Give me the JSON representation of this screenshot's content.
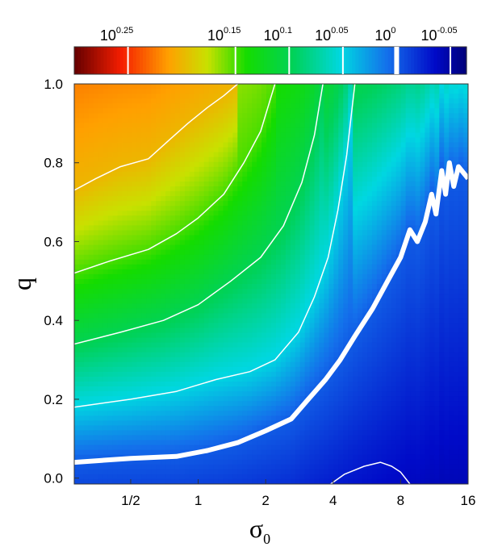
{
  "chart_data": {
    "type": "heatmap",
    "xlabel": "σ",
    "xlabel_sub": "0",
    "ylabel": "q",
    "x_scale": "log2",
    "xlim": [
      0.28,
      16
    ],
    "ylim": [
      -0.015,
      1.0
    ],
    "x_ticks": [
      {
        "value": 0.5,
        "label": "1/2"
      },
      {
        "value": 1,
        "label": "1"
      },
      {
        "value": 2,
        "label": "2"
      },
      {
        "value": 4,
        "label": "4"
      },
      {
        "value": 8,
        "label": "8"
      },
      {
        "value": 16,
        "label": "16"
      }
    ],
    "y_ticks": [
      {
        "value": 0.0,
        "label": "0.0"
      },
      {
        "value": 0.2,
        "label": "0.2"
      },
      {
        "value": 0.4,
        "label": "0.4"
      },
      {
        "value": 0.6,
        "label": "0.6"
      },
      {
        "value": 0.8,
        "label": "0.8"
      },
      {
        "value": 1.0,
        "label": "1.0"
      }
    ],
    "colorbar": {
      "scale": "log10",
      "range_exponent": [
        0.3,
        -0.065
      ],
      "ticks": [
        {
          "exponent": 0.25,
          "base": "10",
          "exp": "0.25"
        },
        {
          "exponent": 0.15,
          "base": "10",
          "exp": "0.15"
        },
        {
          "exponent": 0.1,
          "base": "10",
          "exp": "0.1"
        },
        {
          "exponent": 0.05,
          "base": "10",
          "exp": "0.05"
        },
        {
          "exponent": 0.0,
          "base": "10",
          "exp": "0"
        },
        {
          "exponent": -0.05,
          "base": "10",
          "exp": "-0.05"
        }
      ]
    },
    "contours": [
      {
        "level_exponent": 0.2,
        "thick": false,
        "points": [
          [
            0.28,
            0.73
          ],
          [
            0.35,
            0.76
          ],
          [
            0.45,
            0.79
          ],
          [
            0.6,
            0.81
          ],
          [
            0.75,
            0.86
          ],
          [
            0.9,
            0.9
          ],
          [
            1.1,
            0.94
          ],
          [
            1.3,
            0.97
          ],
          [
            1.5,
            1.0
          ]
        ]
      },
      {
        "level_exponent": 0.15,
        "thick": false,
        "points": [
          [
            0.28,
            0.52
          ],
          [
            0.4,
            0.55
          ],
          [
            0.6,
            0.58
          ],
          [
            0.8,
            0.62
          ],
          [
            1.0,
            0.66
          ],
          [
            1.3,
            0.72
          ],
          [
            1.6,
            0.8
          ],
          [
            1.9,
            0.88
          ],
          [
            2.2,
            1.0
          ]
        ]
      },
      {
        "level_exponent": 0.1,
        "thick": false,
        "points": [
          [
            0.28,
            0.34
          ],
          [
            0.45,
            0.37
          ],
          [
            0.7,
            0.4
          ],
          [
            1.0,
            0.44
          ],
          [
            1.4,
            0.5
          ],
          [
            1.9,
            0.56
          ],
          [
            2.4,
            0.64
          ],
          [
            2.9,
            0.75
          ],
          [
            3.3,
            0.87
          ],
          [
            3.6,
            1.0
          ]
        ]
      },
      {
        "level_exponent": 0.05,
        "thick": false,
        "points": [
          [
            0.28,
            0.18
          ],
          [
            0.5,
            0.2
          ],
          [
            0.8,
            0.22
          ],
          [
            1.2,
            0.25
          ],
          [
            1.7,
            0.27
          ],
          [
            2.2,
            0.3
          ],
          [
            2.8,
            0.37
          ],
          [
            3.3,
            0.46
          ],
          [
            3.8,
            0.56
          ],
          [
            4.2,
            0.68
          ],
          [
            4.6,
            0.82
          ],
          [
            5.0,
            1.0
          ]
        ]
      },
      {
        "level_exponent": 0.0,
        "thick": true,
        "points": [
          [
            0.28,
            0.04
          ],
          [
            0.5,
            0.05
          ],
          [
            0.8,
            0.055
          ],
          [
            1.1,
            0.07
          ],
          [
            1.5,
            0.09
          ],
          [
            2.0,
            0.12
          ],
          [
            2.6,
            0.15
          ],
          [
            3.1,
            0.2
          ],
          [
            3.7,
            0.25
          ],
          [
            4.3,
            0.3
          ],
          [
            5.0,
            0.36
          ],
          [
            6.0,
            0.43
          ],
          [
            7.0,
            0.5
          ],
          [
            8.0,
            0.56
          ],
          [
            8.8,
            0.63
          ],
          [
            9.5,
            0.6
          ],
          [
            10.3,
            0.65
          ],
          [
            11,
            0.72
          ],
          [
            11.5,
            0.67
          ],
          [
            12.2,
            0.78
          ],
          [
            12.7,
            0.72
          ],
          [
            13.2,
            0.8
          ],
          [
            13.8,
            0.74
          ],
          [
            14.5,
            0.79
          ],
          [
            16,
            0.76
          ]
        ]
      },
      {
        "level_exponent": -0.05,
        "thick": false,
        "points": [
          [
            3.9,
            -0.015
          ],
          [
            4.5,
            0.01
          ],
          [
            5.5,
            0.03
          ],
          [
            6.5,
            0.04
          ],
          [
            7.3,
            0.03
          ],
          [
            8.0,
            0.015
          ],
          [
            8.8,
            -0.015
          ]
        ]
      }
    ]
  }
}
